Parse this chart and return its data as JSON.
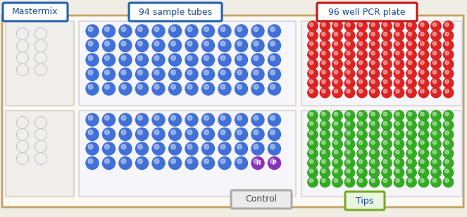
{
  "fig_width": 6.63,
  "fig_height": 3.08,
  "dpi": 100,
  "label_mastermix": "Mastermix",
  "label_sample_tubes": "94 sample tubes",
  "label_pcr_plate": "96 well PCR plate",
  "label_control": "Control",
  "label_tips": "Tips",
  "blue_dot_color": "#4070d8",
  "red_dot_color": "#dd2222",
  "green_dot_color": "#33aa22",
  "purple_N_color": "#8833bb",
  "purple_P_color": "#8833bb",
  "border_blue": "#2060b0",
  "border_red": "#cc1111",
  "border_green": "#77aa22",
  "bg_outer": "#f0ede5",
  "bg_panel": "#fafafa",
  "bg_sub_gray": "#eeeeee",
  "bg_sub_white": "#f8f8ff"
}
